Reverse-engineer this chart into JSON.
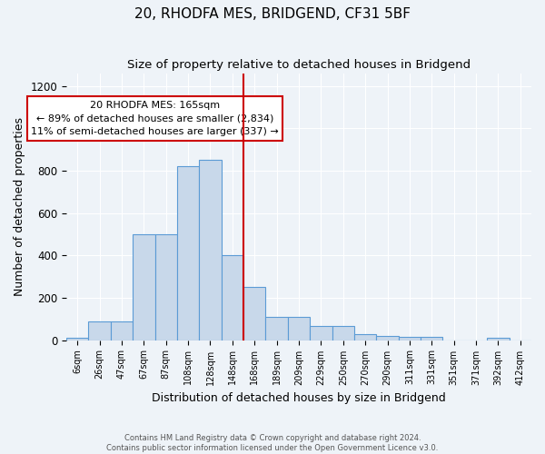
{
  "title": "20, RHODFA MES, BRIDGEND, CF31 5BF",
  "subtitle": "Size of property relative to detached houses in Bridgend",
  "xlabel": "Distribution of detached houses by size in Bridgend",
  "ylabel": "Number of detached properties",
  "bin_labels": [
    "6sqm",
    "26sqm",
    "47sqm",
    "67sqm",
    "87sqm",
    "108sqm",
    "128sqm",
    "148sqm",
    "168sqm",
    "189sqm",
    "209sqm",
    "229sqm",
    "250sqm",
    "270sqm",
    "290sqm",
    "311sqm",
    "331sqm",
    "351sqm",
    "371sqm",
    "392sqm",
    "412sqm"
  ],
  "bar_values": [
    10,
    90,
    90,
    500,
    500,
    820,
    850,
    400,
    250,
    110,
    110,
    65,
    65,
    30,
    20,
    15,
    15,
    0,
    0,
    10,
    0
  ],
  "bar_color": "#c8d8ea",
  "bar_edgecolor": "#5b9bd5",
  "property_line_bin": 8,
  "property_line_color": "#cc0000",
  "annotation_text": "20 RHODFA MES: 165sqm\n← 89% of detached houses are smaller (2,834)\n11% of semi-detached houses are larger (337) →",
  "annotation_box_color": "#ffffff",
  "annotation_box_edgecolor": "#cc0000",
  "ylim": [
    0,
    1260
  ],
  "yticks": [
    0,
    200,
    400,
    600,
    800,
    1000,
    1200
  ],
  "bg_color": "#eef3f8",
  "footer_text": "Contains HM Land Registry data © Crown copyright and database right 2024.\nContains public sector information licensed under the Open Government Licence v3.0.",
  "title_fontsize": 11,
  "subtitle_fontsize": 9.5,
  "xlabel_fontsize": 9,
  "ylabel_fontsize": 9,
  "tick_fontsize": 7,
  "ytick_fontsize": 8.5
}
